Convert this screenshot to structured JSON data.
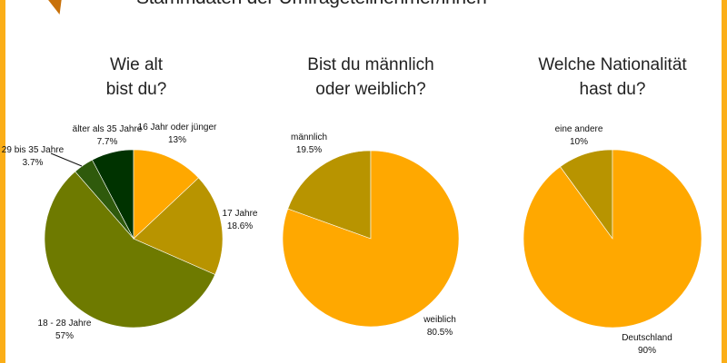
{
  "document": {
    "title": "Stammdaten der Umfrageteilnehmer/innen"
  },
  "colors": {
    "frame": "#FBAE17",
    "orange": "#FFA800",
    "gold": "#B89400",
    "olive": "#6E7A00",
    "green": "#2F5A0C",
    "darkgreen": "#003300"
  },
  "chart_data": [
    {
      "type": "pie",
      "title": "Wie alt\nbist du?",
      "slices": [
        {
          "label": "16 Jahr oder jünger",
          "value": 13,
          "text": "13%",
          "color": "#FFA800"
        },
        {
          "label": "17 Jahre",
          "value": 18.6,
          "text": "18.6%",
          "color": "#B89400"
        },
        {
          "label": "18 - 28 Jahre",
          "value": 57,
          "text": "57%",
          "color": "#6E7A00"
        },
        {
          "label": "29 bis 35 Jahre",
          "value": 3.7,
          "text": "3.7%",
          "color": "#2F5A0C"
        },
        {
          "label": "älter als 35 Jahre",
          "value": 7.7,
          "text": "7.7%",
          "color": "#003300"
        }
      ]
    },
    {
      "type": "pie",
      "title": "Bist du männlich\noder weiblich?",
      "slices": [
        {
          "label": "weiblich",
          "value": 80.5,
          "text": "80.5%",
          "color": "#FFA800"
        },
        {
          "label": "männlich",
          "value": 19.5,
          "text": "19.5%",
          "color": "#B89400"
        }
      ]
    },
    {
      "type": "pie",
      "title": "Welche Nationalität\nhast du?",
      "slices": [
        {
          "label": "Deutschland",
          "value": 90,
          "text": "90%",
          "color": "#FFA800"
        },
        {
          "label": "eine andere",
          "value": 10,
          "text": "10%",
          "color": "#B89400"
        }
      ]
    }
  ]
}
